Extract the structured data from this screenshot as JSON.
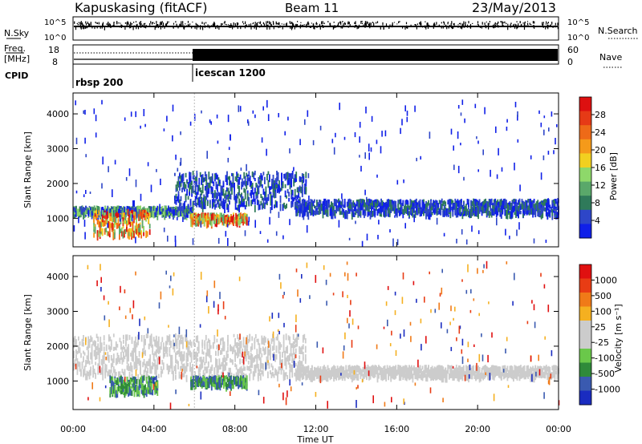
{
  "header": {
    "station": "Kapuskasing (fitACF)",
    "beam": "Beam 11",
    "date": "23/May/2013"
  },
  "noise_panel": {
    "left_label": "N.Sky",
    "right_label": "N.Search",
    "ticks_left": [
      "10^5",
      "10^0"
    ],
    "ticks_right": [
      "10^5",
      "10^0"
    ]
  },
  "freq_panel": {
    "left_label_1": "Freq.",
    "left_label_2": "[MHz]",
    "right_label": "Nave",
    "ticks_left": [
      "18",
      "8"
    ],
    "ticks_right": [
      "60",
      "0"
    ]
  },
  "cpid": {
    "label": "CPID",
    "modes": [
      {
        "name": "rbsp 200",
        "start_hour": 0
      },
      {
        "name": "icescan 1200",
        "start_hour": 6
      }
    ]
  },
  "x_axis": {
    "label": "Time UT",
    "ticks": [
      "00:00",
      "04:00",
      "08:00",
      "12:00",
      "16:00",
      "20:00",
      "00:00"
    ]
  },
  "chart_data": [
    {
      "type": "heatmap",
      "title": "",
      "xlabel": "Time UT",
      "ylabel": "Slant Range [km]",
      "xlim_hours": [
        0,
        24
      ],
      "ylim_km": [
        180,
        4600
      ],
      "yticks": [
        "1000",
        "2000",
        "3000",
        "4000"
      ],
      "colorbar": {
        "label": "Power [dB]",
        "ticks": [
          "4",
          "8",
          "12",
          "16",
          "20",
          "24",
          "28"
        ],
        "colors": [
          "#1020e8",
          "#2e46c8",
          "#2f7a5a",
          "#5aa86a",
          "#8ed86a",
          "#f2d020",
          "#f59a1a",
          "#ee6a18",
          "#e63a16",
          "#dd1010"
        ]
      },
      "echo_bands": [
        {
          "t_start": 0.0,
          "t_end": 5.9,
          "r_min": 1100,
          "r_max": 1300,
          "level": "mid"
        },
        {
          "t_start": 1.0,
          "t_end": 3.8,
          "r_min": 500,
          "r_max": 1200,
          "level": "high"
        },
        {
          "t_start": 5.8,
          "t_end": 8.6,
          "r_min": 850,
          "r_max": 1100,
          "level": "high"
        },
        {
          "t_start": 5.0,
          "t_end": 11.5,
          "r_min": 1300,
          "r_max": 2300,
          "level": "low"
        },
        {
          "t_start": 11.0,
          "t_end": 24.0,
          "r_min": 1100,
          "r_max": 1500,
          "level": "low"
        }
      ]
    },
    {
      "type": "heatmap",
      "title": "",
      "xlabel": "Time UT",
      "ylabel": "Slant Range [km]",
      "xlim_hours": [
        0,
        24
      ],
      "ylim_km": [
        180,
        4600
      ],
      "yticks": [
        "1000",
        "2000",
        "3000",
        "4000"
      ],
      "colorbar": {
        "label": "Velocity [m s⁻¹]",
        "ticks": [
          "1000",
          "500",
          "100",
          "25",
          "-25",
          "-100",
          "-500",
          "-1000"
        ],
        "colors": [
          "#1a2cc0",
          "#3a5ab0",
          "#2f8a3a",
          "#6ac84a",
          "#cccccc",
          "#cccccc",
          "#f5b020",
          "#f07a18",
          "#e83c14",
          "#e01010"
        ]
      },
      "echo_bands": [
        {
          "t_start": 0.0,
          "t_end": 11.5,
          "r_min": 1100,
          "r_max": 2300,
          "level": "ground"
        },
        {
          "t_start": 1.8,
          "t_end": 4.2,
          "r_min": 650,
          "r_max": 1100,
          "level": "toward"
        },
        {
          "t_start": 5.8,
          "t_end": 8.6,
          "r_min": 850,
          "r_max": 1100,
          "level": "toward"
        },
        {
          "t_start": 11.0,
          "t_end": 24.0,
          "r_min": 1100,
          "r_max": 1400,
          "level": "ground"
        }
      ]
    }
  ]
}
